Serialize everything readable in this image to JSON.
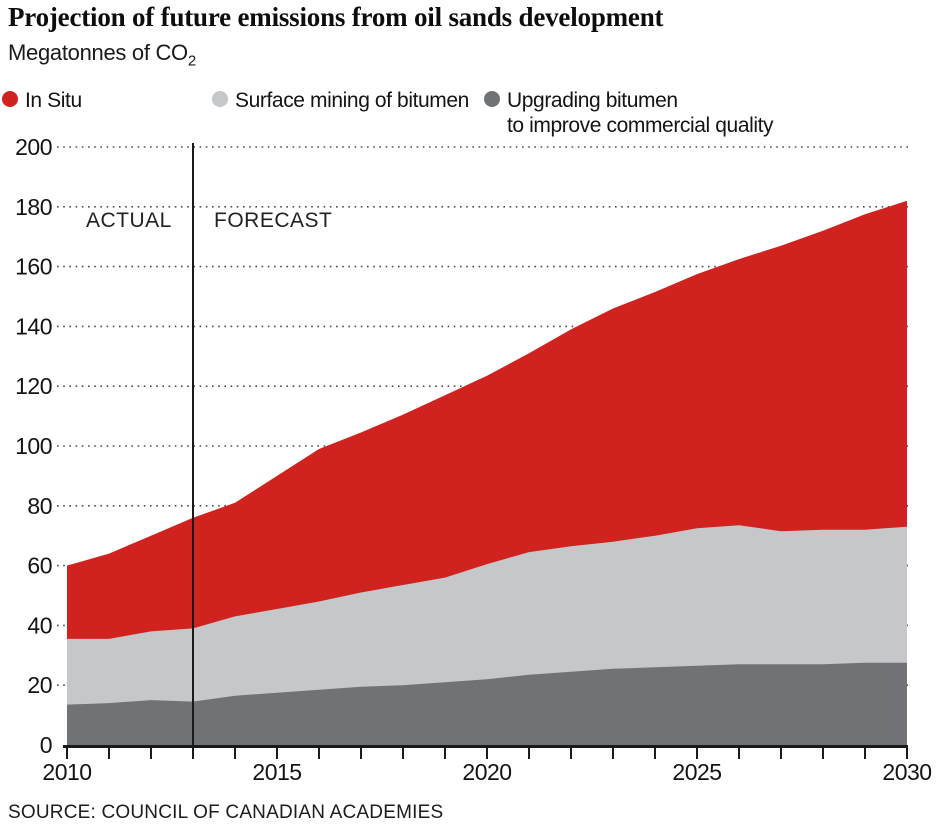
{
  "header": {
    "title": "Projection of future emissions from oil sands development",
    "unit_label": "Megatonnes of CO",
    "unit_subscript": "2"
  },
  "legend": [
    {
      "label_line1": "In Situ",
      "color": "#d0231f"
    },
    {
      "label_line1": "Surface mining of bitumen",
      "color": "#c6c7c9"
    },
    {
      "label_line1": "Upgrading bitumen",
      "label_line2": "to improve commercial quality",
      "color": "#717275"
    }
  ],
  "annotations": {
    "actual": "ACTUAL",
    "forecast": "FORECAST",
    "divider_year": 2013
  },
  "source": "SOURCE: COUNCIL OF CANADIAN ACADEMIES",
  "chart_data": {
    "type": "area",
    "stacked": true,
    "title": "Projection of future emissions from oil sands development",
    "ylabel": "Megatonnes of CO2",
    "x": [
      2010,
      2011,
      2012,
      2013,
      2014,
      2015,
      2016,
      2017,
      2018,
      2019,
      2020,
      2021,
      2022,
      2023,
      2024,
      2025,
      2026,
      2027,
      2028,
      2029,
      2030
    ],
    "series": [
      {
        "name": "Upgrading bitumen to improve commercial quality",
        "color": "#717275",
        "values": [
          13.5,
          14,
          15,
          14.5,
          16.5,
          17.5,
          18.5,
          19.5,
          20,
          21,
          22,
          23.5,
          24.5,
          25.5,
          26,
          26.5,
          27,
          27,
          27,
          27.5,
          27.5
        ]
      },
      {
        "name": "Surface mining of bitumen",
        "color": "#c6c7c9",
        "values": [
          22,
          21.5,
          23,
          24.5,
          26.5,
          28,
          29.5,
          31.5,
          33.5,
          35,
          38.5,
          41,
          42,
          42.5,
          44,
          46,
          46.5,
          44.5,
          45,
          44.5,
          45.5
        ]
      },
      {
        "name": "In Situ",
        "color": "#d0231f",
        "values": [
          24.5,
          28.5,
          32,
          37,
          38,
          44.5,
          51,
          53.5,
          57,
          61,
          63,
          66.5,
          72.5,
          78,
          81.5,
          85,
          89,
          95.5,
          100,
          105.5,
          109
        ]
      }
    ],
    "stacked_totals": [
      60,
      64,
      70,
      76,
      81,
      90,
      99,
      104.5,
      110.5,
      117,
      123.5,
      131,
      139,
      146,
      151.5,
      157.5,
      162.5,
      167,
      172,
      177.5,
      182
    ],
    "ylim": [
      0,
      200
    ],
    "yticks": [
      0,
      20,
      40,
      60,
      80,
      100,
      120,
      140,
      160,
      180,
      200
    ],
    "xticks_labeled": [
      2010,
      2015,
      2020,
      2025,
      2030
    ],
    "grid": "horizontal-dotted",
    "legend_position": "top"
  }
}
